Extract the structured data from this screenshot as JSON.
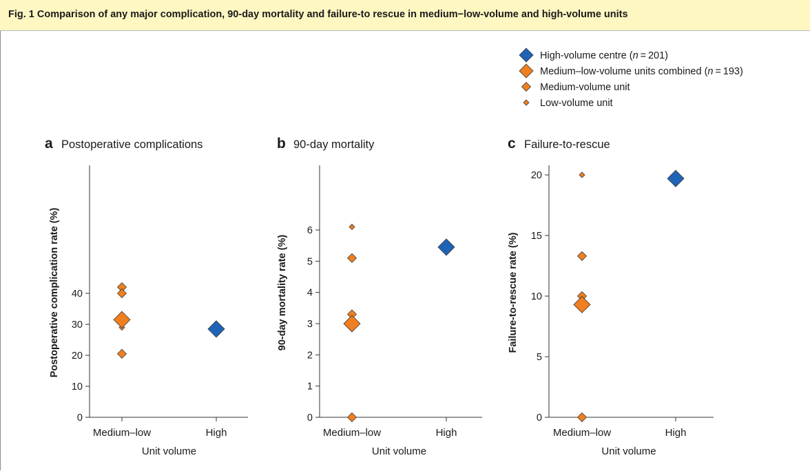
{
  "caption": "Fig. 1 Comparison of any major complication, 90-day mortality and failure-to rescue in medium−low-volume and high-volume units",
  "colors": {
    "high": "#1f63b6",
    "medium_low": "#f07f1f",
    "marker_edge": "#3b3b3b",
    "caption_bg": "#fef7c2"
  },
  "legend": {
    "position": "top-right",
    "items": [
      {
        "key": "high_combined",
        "label": "High-volume centre (n = 201)",
        "italic_n": true
      },
      {
        "key": "ml_combined",
        "label": "Medium–low-volume units combined (n = 193)",
        "italic_n": true
      },
      {
        "key": "medium_unit",
        "label": "Medium-volume unit"
      },
      {
        "key": "low_unit",
        "label": "Low-volume unit"
      }
    ]
  },
  "chart_data": [
    {
      "type": "scatter",
      "panel_letter": "a",
      "panel_title": "Postoperative complications",
      "xlabel": "Unit volume",
      "ylabel": "Postoperative complication rate (%)",
      "categories": [
        "Medium–low",
        "High"
      ],
      "yticks": [
        0,
        10,
        20,
        30,
        40
      ],
      "ylim": [
        0,
        70
      ],
      "grid": false,
      "series": [
        {
          "name": "High-volume centre (n = 201)",
          "marker": "high_combined",
          "points": [
            {
              "x": "High",
              "y": 28.5
            }
          ]
        },
        {
          "name": "Medium–low-volume units combined (n = 193)",
          "marker": "ml_combined",
          "points": [
            {
              "x": "Medium–low",
              "y": 31.5
            }
          ]
        },
        {
          "name": "Medium-volume unit",
          "marker": "medium_unit",
          "points": [
            {
              "x": "Medium–low",
              "y": 42
            },
            {
              "x": "Medium–low",
              "y": 40
            },
            {
              "x": "Medium–low",
              "y": 20.5
            }
          ]
        },
        {
          "name": "Low-volume unit",
          "marker": "low_unit",
          "points": [
            {
              "x": "Medium–low",
              "y": 29
            }
          ]
        }
      ]
    },
    {
      "type": "scatter",
      "panel_letter": "b",
      "panel_title": "90-day mortality",
      "xlabel": "Unit volume",
      "ylabel": "90-day mortality rate (%)",
      "categories": [
        "Medium–low",
        "High"
      ],
      "yticks": [
        0,
        1,
        2,
        3,
        4,
        5,
        6
      ],
      "ylim": [
        0,
        6.3
      ],
      "grid": false,
      "series": [
        {
          "name": "High-volume centre (n = 201)",
          "marker": "high_combined",
          "points": [
            {
              "x": "High",
              "y": 5.45
            }
          ]
        },
        {
          "name": "Medium–low-volume units combined (n = 193)",
          "marker": "ml_combined",
          "points": [
            {
              "x": "Medium–low",
              "y": 3.0
            }
          ]
        },
        {
          "name": "Medium-volume unit",
          "marker": "medium_unit",
          "points": [
            {
              "x": "Medium–low",
              "y": 5.1
            },
            {
              "x": "Medium–low",
              "y": 3.3
            },
            {
              "x": "Medium–low",
              "y": 0
            }
          ]
        },
        {
          "name": "Low-volume unit",
          "marker": "low_unit",
          "points": [
            {
              "x": "Medium–low",
              "y": 6.1
            }
          ]
        }
      ]
    },
    {
      "type": "scatter",
      "panel_letter": "c",
      "panel_title": "Failure-to-rescue",
      "xlabel": "Unit volume",
      "ylabel": "Failure-to-rescue rate (%)",
      "categories": [
        "Medium–low",
        "High"
      ],
      "yticks": [
        0,
        5,
        10,
        15,
        20
      ],
      "ylim": [
        0,
        20
      ],
      "grid": false,
      "series": [
        {
          "name": "High-volume centre (n = 201)",
          "marker": "high_combined",
          "points": [
            {
              "x": "High",
              "y": 19.7
            }
          ]
        },
        {
          "name": "Medium–low-volume units combined (n = 193)",
          "marker": "ml_combined",
          "points": [
            {
              "x": "Medium–low",
              "y": 9.3
            }
          ]
        },
        {
          "name": "Medium-volume unit",
          "marker": "medium_unit",
          "points": [
            {
              "x": "Medium–low",
              "y": 13.3
            },
            {
              "x": "Medium–low",
              "y": 10
            },
            {
              "x": "Medium–low",
              "y": 0
            }
          ]
        },
        {
          "name": "Low-volume unit",
          "marker": "low_unit",
          "points": [
            {
              "x": "Medium–low",
              "y": 20
            }
          ]
        }
      ]
    }
  ]
}
